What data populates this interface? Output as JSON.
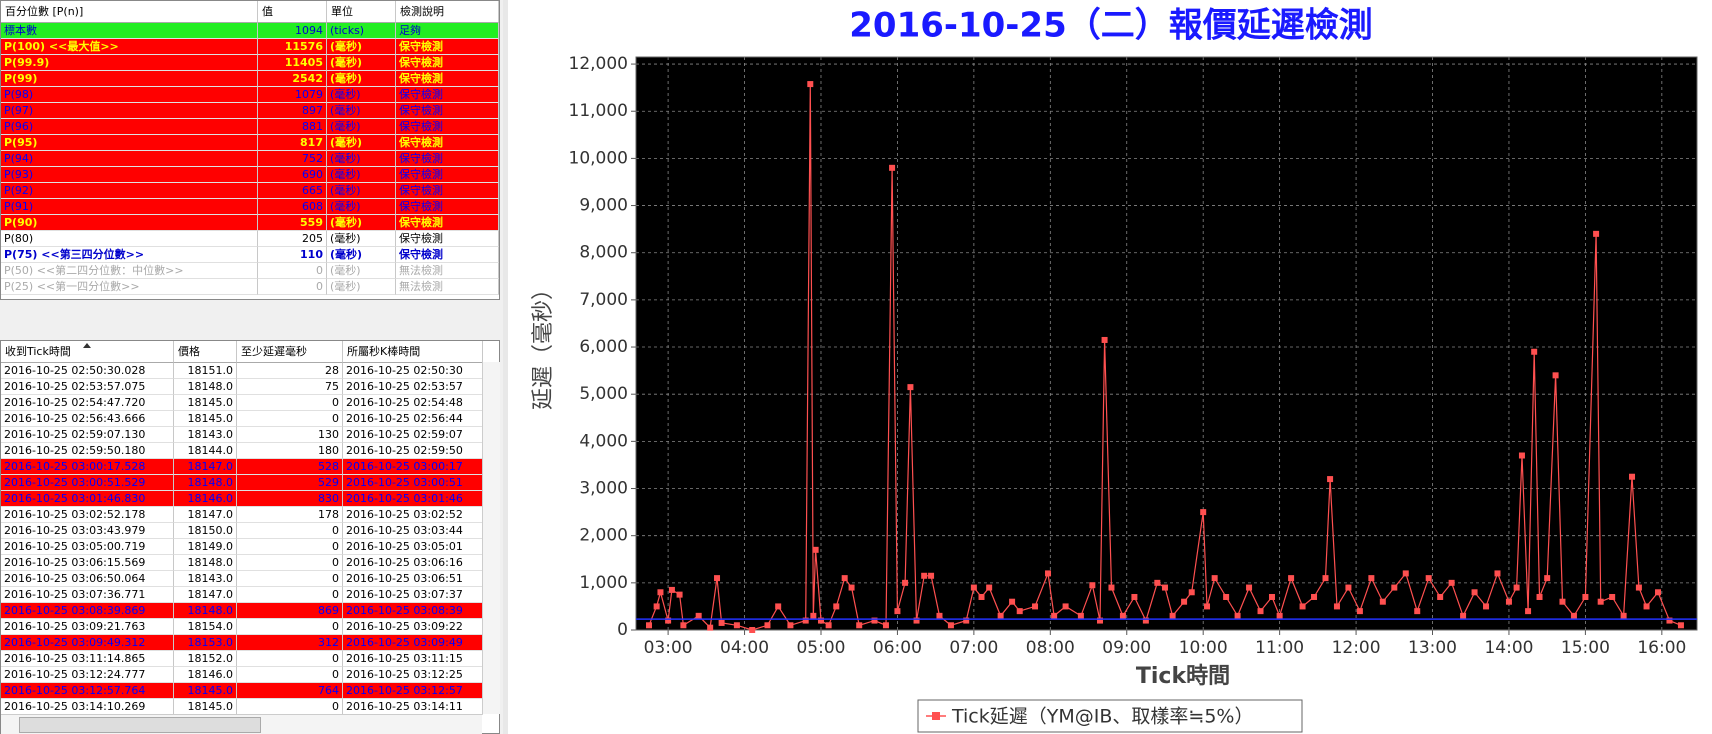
{
  "stats_table": {
    "headers": [
      "百分位數 [P(n)]",
      "值",
      "單位",
      "檢測說明"
    ],
    "rows": [
      {
        "cells": [
          "標本數",
          "1094",
          "(ticks)",
          "足夠"
        ],
        "bg": "#22ee22",
        "fg": "#0000cc",
        "bold": false
      },
      {
        "cells": [
          "P(100)  <<最大值>>",
          "11576",
          "(毫秒)",
          "保守檢測"
        ],
        "bg": "#ff0000",
        "fg": "#ffff00",
        "bold": true
      },
      {
        "cells": [
          "P(99.9)",
          "11405",
          "(毫秒)",
          "保守檢測"
        ],
        "bg": "#ff0000",
        "fg": "#ffff00",
        "bold": true
      },
      {
        "cells": [
          "P(99)",
          "2542",
          "(毫秒)",
          "保守檢測"
        ],
        "bg": "#ff0000",
        "fg": "#ffff00",
        "bold": true
      },
      {
        "cells": [
          "P(98)",
          "1079",
          "(毫秒)",
          "保守檢測"
        ],
        "bg": "#ff0000",
        "fg": "#0000ff",
        "bold": false
      },
      {
        "cells": [
          "P(97)",
          "897",
          "(毫秒)",
          "保守檢測"
        ],
        "bg": "#ff0000",
        "fg": "#0000ff",
        "bold": false
      },
      {
        "cells": [
          "P(96)",
          "881",
          "(毫秒)",
          "保守檢測"
        ],
        "bg": "#ff0000",
        "fg": "#0000ff",
        "bold": false
      },
      {
        "cells": [
          "P(95)",
          "817",
          "(毫秒)",
          "保守檢測"
        ],
        "bg": "#ff0000",
        "fg": "#ffff00",
        "bold": true
      },
      {
        "cells": [
          "P(94)",
          "752",
          "(毫秒)",
          "保守檢測"
        ],
        "bg": "#ff0000",
        "fg": "#0000ff",
        "bold": false
      },
      {
        "cells": [
          "P(93)",
          "690",
          "(毫秒)",
          "保守檢測"
        ],
        "bg": "#ff0000",
        "fg": "#0000ff",
        "bold": false
      },
      {
        "cells": [
          "P(92)",
          "665",
          "(毫秒)",
          "保守檢測"
        ],
        "bg": "#ff0000",
        "fg": "#0000ff",
        "bold": false
      },
      {
        "cells": [
          "P(91)",
          "608",
          "(毫秒)",
          "保守檢測"
        ],
        "bg": "#ff0000",
        "fg": "#0000ff",
        "bold": false
      },
      {
        "cells": [
          "P(90)",
          "559",
          "(毫秒)",
          "保守檢測"
        ],
        "bg": "#ff0000",
        "fg": "#ffff00",
        "bold": true
      },
      {
        "cells": [
          "P(80)",
          "205",
          "(毫秒)",
          "保守檢測"
        ],
        "bg": "#ffffff",
        "fg": "#000000",
        "bold": false
      },
      {
        "cells": [
          "P(75)  <<第三四分位數>>",
          "110",
          "(毫秒)",
          "保守檢測"
        ],
        "bg": "#ffffff",
        "fg": "#0000cc",
        "bold": true
      },
      {
        "cells": [
          "P(50)  <<第二四分位數：中位數>>",
          "0",
          "(毫秒)",
          "無法檢測"
        ],
        "bg": "#ffffff",
        "fg": "#aaaaaa",
        "bold": false
      },
      {
        "cells": [
          "P(25)  <<第一四分位數>>",
          "0",
          "(毫秒)",
          "無法檢測"
        ],
        "bg": "#ffffff",
        "fg": "#aaaaaa",
        "bold": false
      }
    ]
  },
  "tick_table": {
    "headers": [
      "收到Tick時間",
      "價格",
      "至少延遲毫秒",
      "所屬秒K棒時間"
    ],
    "rows": [
      {
        "cells": [
          "2016-10-25 02:50:30.028",
          "18151.0",
          "28",
          "2016-10-25 02:50:30"
        ],
        "bg": "#ffffff",
        "fg": "#000000"
      },
      {
        "cells": [
          "2016-10-25 02:53:57.075",
          "18148.0",
          "75",
          "2016-10-25 02:53:57"
        ],
        "bg": "#ffffff",
        "fg": "#000000"
      },
      {
        "cells": [
          "2016-10-25 02:54:47.720",
          "18145.0",
          "0",
          "2016-10-25 02:54:48"
        ],
        "bg": "#ffffff",
        "fg": "#000000"
      },
      {
        "cells": [
          "2016-10-25 02:56:43.666",
          "18145.0",
          "0",
          "2016-10-25 02:56:44"
        ],
        "bg": "#ffffff",
        "fg": "#000000"
      },
      {
        "cells": [
          "2016-10-25 02:59:07.130",
          "18143.0",
          "130",
          "2016-10-25 02:59:07"
        ],
        "bg": "#ffffff",
        "fg": "#000000"
      },
      {
        "cells": [
          "2016-10-25 02:59:50.180",
          "18144.0",
          "180",
          "2016-10-25 02:59:50"
        ],
        "bg": "#ffffff",
        "fg": "#000000"
      },
      {
        "cells": [
          "2016-10-25 03:00:17.528",
          "18147.0",
          "528",
          "2016-10-25 03:00:17"
        ],
        "bg": "#ff0000",
        "fg": "#0000ff"
      },
      {
        "cells": [
          "2016-10-25 03:00:51.529",
          "18148.0",
          "529",
          "2016-10-25 03:00:51"
        ],
        "bg": "#ff0000",
        "fg": "#0000ff"
      },
      {
        "cells": [
          "2016-10-25 03:01:46.830",
          "18146.0",
          "830",
          "2016-10-25 03:01:46"
        ],
        "bg": "#ff0000",
        "fg": "#0000ff"
      },
      {
        "cells": [
          "2016-10-25 03:02:52.178",
          "18147.0",
          "178",
          "2016-10-25 03:02:52"
        ],
        "bg": "#ffffff",
        "fg": "#000000"
      },
      {
        "cells": [
          "2016-10-25 03:03:43.979",
          "18150.0",
          "0",
          "2016-10-25 03:03:44"
        ],
        "bg": "#ffffff",
        "fg": "#000000"
      },
      {
        "cells": [
          "2016-10-25 03:05:00.719",
          "18149.0",
          "0",
          "2016-10-25 03:05:01"
        ],
        "bg": "#ffffff",
        "fg": "#000000"
      },
      {
        "cells": [
          "2016-10-25 03:06:15.569",
          "18148.0",
          "0",
          "2016-10-25 03:06:16"
        ],
        "bg": "#ffffff",
        "fg": "#000000"
      },
      {
        "cells": [
          "2016-10-25 03:06:50.064",
          "18143.0",
          "0",
          "2016-10-25 03:06:51"
        ],
        "bg": "#ffffff",
        "fg": "#000000"
      },
      {
        "cells": [
          "2016-10-25 03:07:36.771",
          "18147.0",
          "0",
          "2016-10-25 03:07:37"
        ],
        "bg": "#ffffff",
        "fg": "#000000"
      },
      {
        "cells": [
          "2016-10-25 03:08:39.869",
          "18148.0",
          "869",
          "2016-10-25 03:08:39"
        ],
        "bg": "#ff0000",
        "fg": "#0000ff"
      },
      {
        "cells": [
          "2016-10-25 03:09:21.763",
          "18154.0",
          "0",
          "2016-10-25 03:09:22"
        ],
        "bg": "#ffffff",
        "fg": "#000000"
      },
      {
        "cells": [
          "2016-10-25 03:09:49.312",
          "18153.0",
          "312",
          "2016-10-25 03:09:49"
        ],
        "bg": "#ff0000",
        "fg": "#0000ff"
      },
      {
        "cells": [
          "2016-10-25 03:11:14.865",
          "18152.0",
          "0",
          "2016-10-25 03:11:15"
        ],
        "bg": "#ffffff",
        "fg": "#000000"
      },
      {
        "cells": [
          "2016-10-25 03:12:24.777",
          "18146.0",
          "0",
          "2016-10-25 03:12:25"
        ],
        "bg": "#ffffff",
        "fg": "#000000"
      },
      {
        "cells": [
          "2016-10-25 03:12:57.764",
          "18145.0",
          "764",
          "2016-10-25 03:12:57"
        ],
        "bg": "#ff0000",
        "fg": "#0000ff"
      },
      {
        "cells": [
          "2016-10-25 03:14:10.269",
          "18145.0",
          "0",
          "2016-10-25 03:14:11"
        ],
        "bg": "#ffffff",
        "fg": "#000000"
      }
    ]
  },
  "chart_data": {
    "type": "line",
    "title": "2016-10-25（二）報價延遲檢測",
    "x_label": "Tick時間",
    "y_label": "延遲（毫秒）",
    "xlim": [
      2.58,
      16.46
    ],
    "xticks": [
      {
        "value": 3,
        "label": "03:00"
      },
      {
        "value": 4,
        "label": "04:00"
      },
      {
        "value": 5,
        "label": "05:00"
      },
      {
        "value": 6,
        "label": "06:00"
      },
      {
        "value": 7,
        "label": "07:00"
      },
      {
        "value": 8,
        "label": "08:00"
      },
      {
        "value": 9,
        "label": "09:00"
      },
      {
        "value": 10,
        "label": "10:00"
      },
      {
        "value": 11,
        "label": "11:00"
      },
      {
        "value": 12,
        "label": "12:00"
      },
      {
        "value": 13,
        "label": "13:00"
      },
      {
        "value": 14,
        "label": "14:00"
      },
      {
        "value": 15,
        "label": "15:00"
      },
      {
        "value": 16,
        "label": "16:00"
      }
    ],
    "ylim": [
      0,
      12150
    ],
    "yticks": [
      0,
      {
        "value": 1000,
        "label": "1,000"
      },
      {
        "value": 2000,
        "label": "2,000"
      },
      {
        "value": 3000,
        "label": "3,000"
      },
      {
        "value": 4000,
        "label": "4,000"
      },
      {
        "value": 5000,
        "label": "5,000"
      },
      {
        "value": 6000,
        "label": "6,000"
      },
      {
        "value": 7000,
        "label": "7,000"
      },
      {
        "value": 8000,
        "label": "8,000"
      },
      {
        "value": 9000,
        "label": "9,000"
      },
      {
        "value": 10000,
        "label": "10,000"
      },
      {
        "value": 11000,
        "label": "11,000"
      },
      {
        "value": 12000,
        "label": "12,000"
      }
    ],
    "grid": true,
    "background": "#000000",
    "reference_line": {
      "value": 230,
      "color": "#2233ff"
    },
    "x": [
      2.75,
      2.85,
      2.9,
      3.0,
      3.05,
      3.15,
      3.2,
      3.4,
      3.55,
      3.64,
      3.7,
      3.9,
      4.1,
      4.3,
      4.44,
      4.6,
      4.8,
      4.86,
      4.9,
      4.93,
      5.0,
      5.1,
      5.2,
      5.31,
      5.4,
      5.5,
      5.7,
      5.85,
      5.93,
      6.0,
      6.1,
      6.17,
      6.25,
      6.35,
      6.44,
      6.55,
      6.7,
      6.9,
      7.0,
      7.1,
      7.2,
      7.35,
      7.5,
      7.6,
      7.8,
      7.97,
      8.05,
      8.2,
      8.4,
      8.55,
      8.65,
      8.71,
      8.8,
      8.95,
      9.1,
      9.25,
      9.4,
      9.5,
      9.6,
      9.75,
      9.85,
      10.0,
      10.05,
      10.15,
      10.3,
      10.45,
      10.6,
      10.75,
      10.9,
      11.0,
      11.15,
      11.3,
      11.45,
      11.6,
      11.66,
      11.75,
      11.9,
      12.05,
      12.2,
      12.35,
      12.5,
      12.65,
      12.8,
      12.95,
      13.1,
      13.25,
      13.4,
      13.55,
      13.7,
      13.85,
      14.0,
      14.1,
      14.17,
      14.25,
      14.33,
      14.4,
      14.5,
      14.61,
      14.7,
      14.85,
      15.0,
      15.14,
      15.2,
      15.35,
      15.5,
      15.61,
      15.7,
      15.8,
      15.95,
      16.1,
      16.25
    ],
    "series": [
      {
        "name": "Tick延遲（YM@IB、取樣率≒5%）",
        "color": "#ff5050",
        "values": [
          100,
          500,
          800,
          200,
          850,
          750,
          100,
          300,
          50,
          1100,
          150,
          100,
          0,
          100,
          500,
          100,
          200,
          11576,
          300,
          1700,
          200,
          100,
          500,
          1100,
          900,
          100,
          200,
          100,
          9800,
          400,
          1000,
          5150,
          200,
          1150,
          1150,
          300,
          100,
          200,
          900,
          700,
          900,
          300,
          600,
          400,
          500,
          1200,
          300,
          500,
          300,
          950,
          200,
          6150,
          900,
          300,
          700,
          200,
          1000,
          900,
          300,
          600,
          800,
          2500,
          500,
          1100,
          700,
          300,
          900,
          400,
          700,
          300,
          1100,
          500,
          700,
          1100,
          3200,
          500,
          900,
          400,
          1100,
          600,
          900,
          1200,
          400,
          1100,
          700,
          1000,
          300,
          800,
          500,
          1200,
          600,
          900,
          3700,
          400,
          5900,
          700,
          1100,
          5400,
          600,
          300,
          700,
          8400,
          600,
          700,
          300,
          3250,
          900,
          500,
          800,
          200,
          100
        ]
      }
    ],
    "legend": "bottom"
  }
}
